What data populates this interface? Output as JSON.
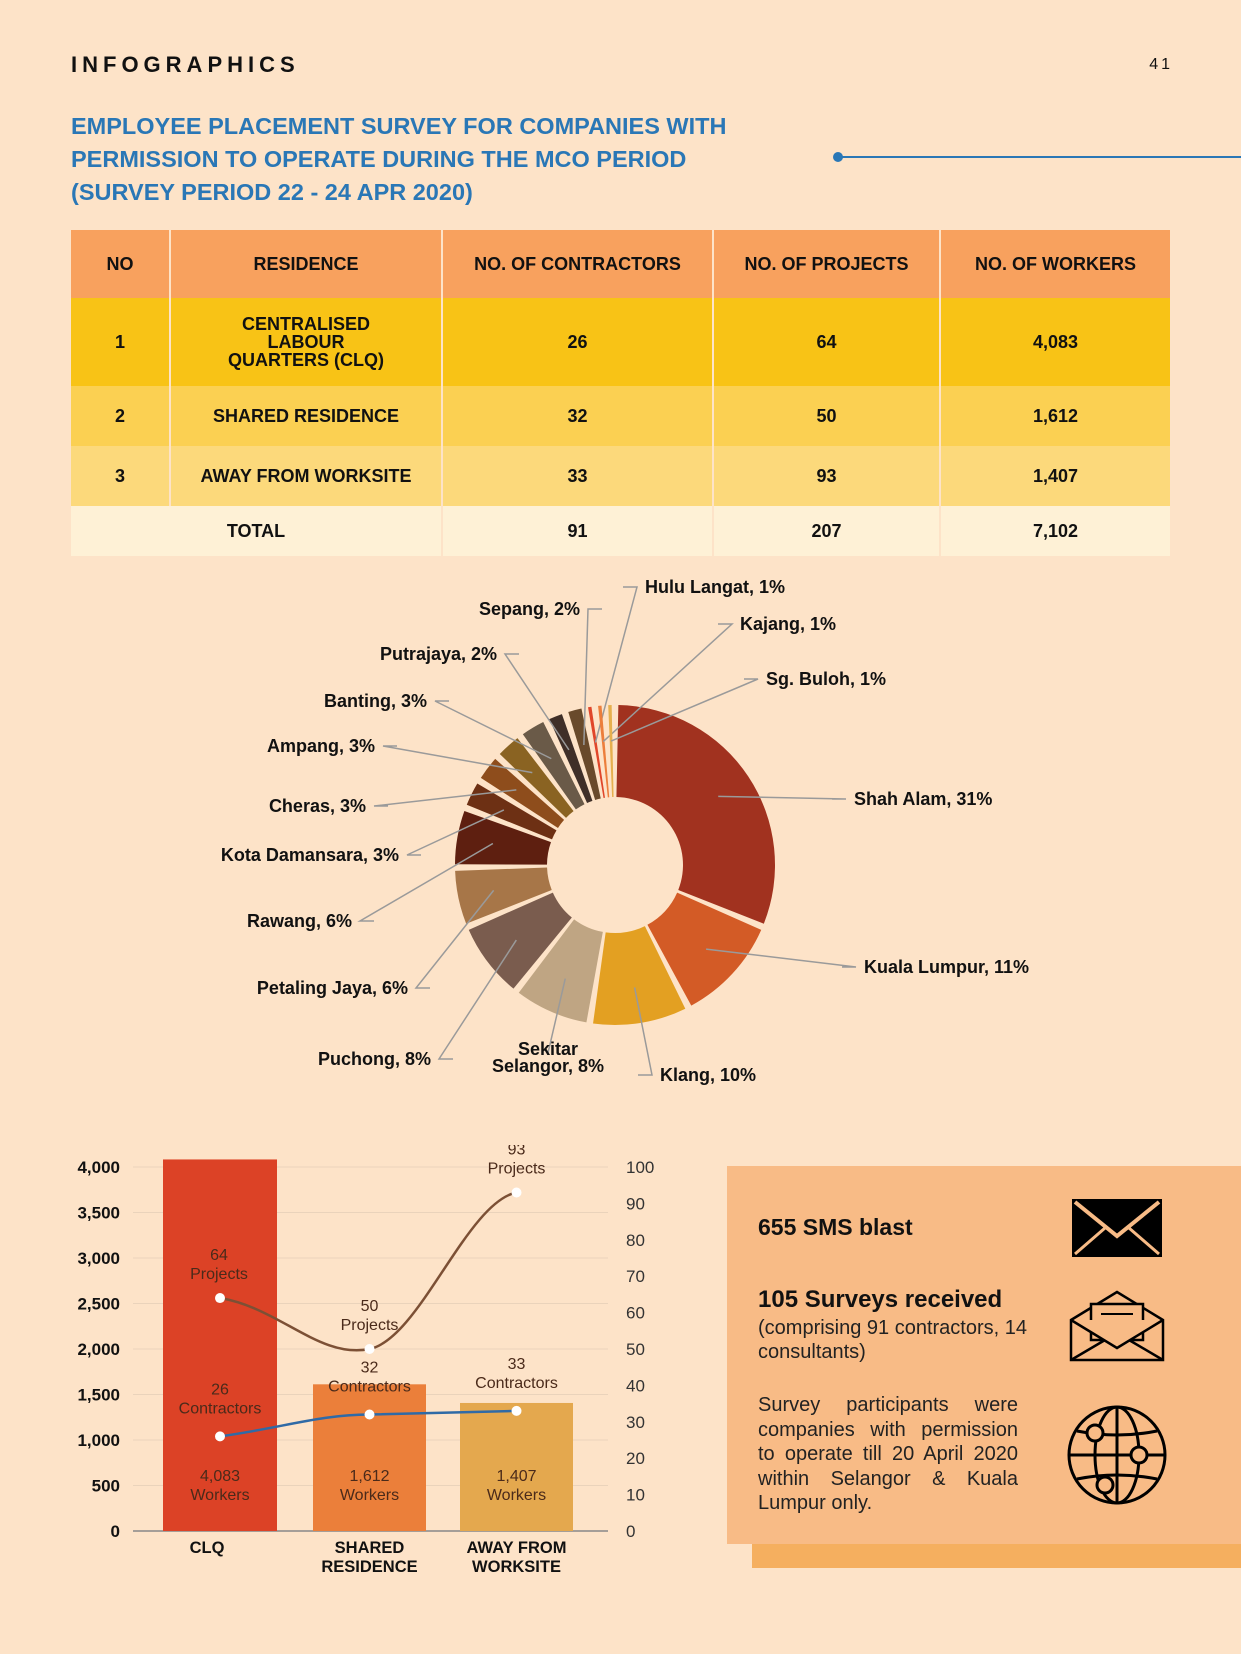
{
  "header": {
    "section_label": "INFOGRAPHICS",
    "page_number": "41",
    "title_lines": [
      "EMPLOYEE PLACEMENT SURVEY FOR COMPANIES WITH",
      "PERMISSION TO OPERATE DURING THE MCO PERIOD",
      "(SURVEY PERIOD 22 - 24 APR 2020)"
    ]
  },
  "table": {
    "headers": [
      "NO",
      "RESIDENCE",
      "NO. OF CONTRACTORS",
      "NO. OF PROJECTS",
      "NO. OF WORKERS"
    ],
    "rows": [
      {
        "no": "1",
        "residence_lines": [
          "CENTRALISED",
          "LABOUR",
          "QUARTERS (CLQ)"
        ],
        "contractors": "26",
        "projects": "64",
        "workers": "4,083"
      },
      {
        "no": "2",
        "residence": "SHARED RESIDENCE",
        "contractors": "32",
        "projects": "50",
        "workers": "1,612"
      },
      {
        "no": "3",
        "residence": "AWAY FROM WORKSITE",
        "contractors": "33",
        "projects": "93",
        "workers": "1,407"
      }
    ],
    "total": {
      "label": "TOTAL",
      "contractors": "91",
      "projects": "207",
      "workers": "7,102"
    }
  },
  "chart_data": [
    {
      "type": "pie",
      "variant": "donut",
      "unit": "%",
      "slices": [
        {
          "label": "Shah Alam, 31%",
          "value": 31,
          "color": "#a1321f"
        },
        {
          "label": "Kuala Lumpur, 11%",
          "value": 11,
          "color": "#d35b26"
        },
        {
          "label": "Klang, 10%",
          "value": 10,
          "color": "#e3a022"
        },
        {
          "label": "Sekitar Selangor, 8%",
          "value": 8,
          "color": "#bfa583"
        },
        {
          "label": "Puchong, 8%",
          "value": 8,
          "color": "#7a5c4e"
        },
        {
          "label": "Petaling Jaya, 6%",
          "value": 6,
          "color": "#a77648"
        },
        {
          "label": "Rawang, 6%",
          "value": 6,
          "color": "#5e1f10"
        },
        {
          "label": "Kota Damansara, 3%",
          "value": 3,
          "color": "#6d3014"
        },
        {
          "label": "Cheras, 3%",
          "value": 3,
          "color": "#8e4d1c"
        },
        {
          "label": "Ampang, 3%",
          "value": 3,
          "color": "#8a6322"
        },
        {
          "label": "Banting, 3%",
          "value": 3,
          "color": "#6a5a48"
        },
        {
          "label": "Putrajaya, 2%",
          "value": 2,
          "color": "#3f2f28"
        },
        {
          "label": "Sepang, 2%",
          "value": 2,
          "color": "#694a2b"
        },
        {
          "label": "Hulu Langat, 1%",
          "value": 1,
          "color": "#e0462a"
        },
        {
          "label": "Kajang, 1%",
          "value": 1,
          "color": "#ec7e3c"
        },
        {
          "label": "Sg. Buloh, 1%",
          "value": 1,
          "color": "#e6b04e"
        }
      ]
    },
    {
      "type": "bar",
      "categories": [
        "CLQ",
        "SHARED RESIDENCE",
        "AWAY FROM WORKSITE"
      ],
      "y_left": {
        "ylim": [
          0,
          4000
        ],
        "ticks": [
          "0",
          "500",
          "1,000",
          "1,500",
          "2,000",
          "2,500",
          "3,000",
          "3,500",
          "4,000"
        ]
      },
      "y_right": {
        "ylim": [
          0,
          100
        ],
        "ticks": [
          "0",
          "10",
          "20",
          "30",
          "40",
          "50",
          "60",
          "70",
          "80",
          "90",
          "100"
        ]
      },
      "grid": true,
      "series": [
        {
          "name": "Workers",
          "kind": "bar",
          "axis": "left",
          "values": [
            4083,
            1612,
            1407
          ],
          "labels": [
            "4,083",
            "1,612",
            "1,407"
          ],
          "colors": [
            "#dc4226",
            "#eb7f3a",
            "#e4a84e"
          ]
        },
        {
          "name": "Projects",
          "kind": "line",
          "axis": "right",
          "values": [
            64,
            50,
            93
          ],
          "color": "#7c5035"
        },
        {
          "name": "Contractors",
          "kind": "line",
          "axis": "right",
          "values": [
            26,
            32,
            33
          ],
          "color": "#2f6aa6"
        }
      ]
    }
  ],
  "info": {
    "sms": "655 SMS blast",
    "surveys": "105 Surveys received",
    "surveys_note": "(comprising 91 contractors, 14 consultants)",
    "participants": "Survey participants were companies with permission to operate till 20 April 2020 within Selangor & Kuala Lumpur only.",
    "icons": [
      "envelope-icon",
      "open-envelope-icon",
      "globe-network-icon"
    ]
  }
}
